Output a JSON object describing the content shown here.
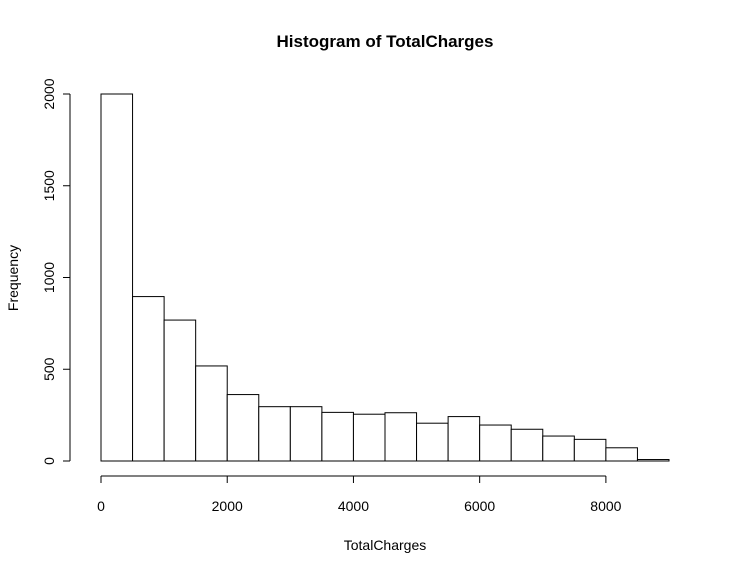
{
  "chart_data": {
    "type": "bar",
    "title": "Histogram of TotalCharges",
    "xlabel": "TotalCharges",
    "ylabel": "Frequency",
    "bin_width": 500,
    "bins": [
      {
        "start": 0,
        "end": 500,
        "count": 2000
      },
      {
        "start": 500,
        "end": 1000,
        "count": 896
      },
      {
        "start": 1000,
        "end": 1500,
        "count": 768
      },
      {
        "start": 1500,
        "end": 2000,
        "count": 518
      },
      {
        "start": 2000,
        "end": 2500,
        "count": 362
      },
      {
        "start": 2500,
        "end": 3000,
        "count": 296
      },
      {
        "start": 3000,
        "end": 3500,
        "count": 296
      },
      {
        "start": 3500,
        "end": 4000,
        "count": 265
      },
      {
        "start": 4000,
        "end": 4500,
        "count": 255
      },
      {
        "start": 4500,
        "end": 5000,
        "count": 263
      },
      {
        "start": 5000,
        "end": 5500,
        "count": 206
      },
      {
        "start": 5500,
        "end": 6000,
        "count": 242
      },
      {
        "start": 6000,
        "end": 6500,
        "count": 196
      },
      {
        "start": 6500,
        "end": 7000,
        "count": 173
      },
      {
        "start": 7000,
        "end": 7500,
        "count": 136
      },
      {
        "start": 7500,
        "end": 8000,
        "count": 118
      },
      {
        "start": 8000,
        "end": 8500,
        "count": 72
      },
      {
        "start": 8500,
        "end": 9000,
        "count": 8
      }
    ],
    "x_ticks": [
      "0",
      "2000",
      "4000",
      "6000",
      "8000"
    ],
    "y_ticks": [
      "0",
      "500",
      "1000",
      "1500",
      "2000"
    ],
    "xlim": [
      0,
      9000
    ],
    "ylim": [
      0,
      2000
    ],
    "grid": false
  }
}
